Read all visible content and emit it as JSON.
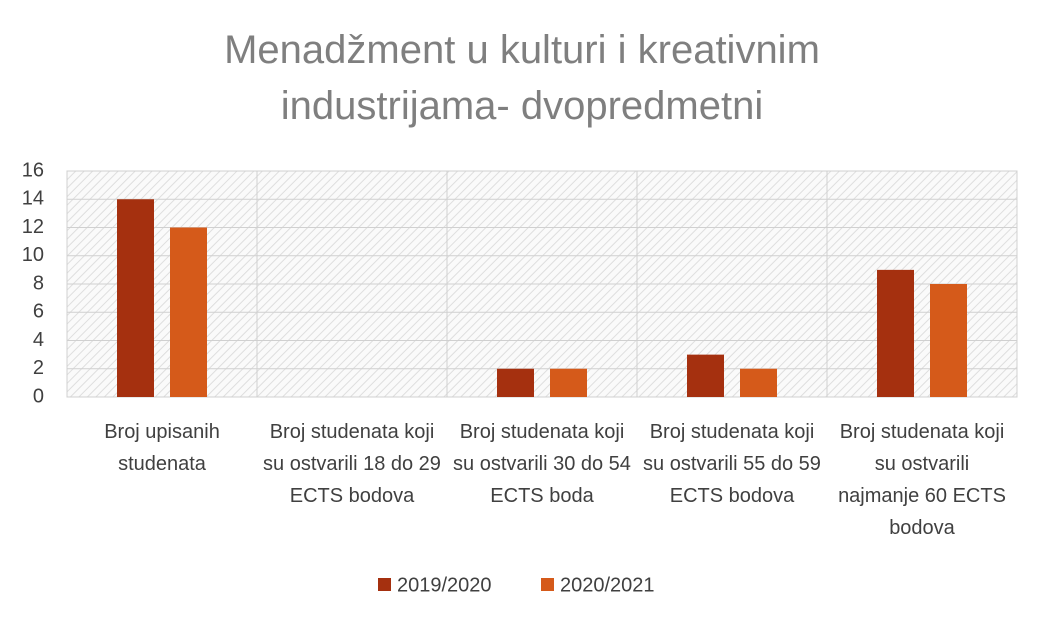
{
  "chart_data": {
    "type": "bar",
    "title": "Menadžment u kulturi i kreativnim industrijama- dvopredmetni",
    "categories": [
      "Broj upisanih studenata",
      "Broj studenata koji su ostvarili 18 do 29 ECTS bodova",
      "Broj studenata koji su ostvarili 30 do 54 ECTS boda",
      "Broj studenata koji su ostvarili 55 do 59 ECTS bodova",
      "Broj studenata koji su ostvarili najmanje 60 ECTS bodova"
    ],
    "series": [
      {
        "name": "2019/2020",
        "color": "#a5300f",
        "values": [
          14,
          0,
          2,
          3,
          9
        ]
      },
      {
        "name": "2020/2021",
        "color": "#d55a1a",
        "values": [
          12,
          0,
          2,
          2,
          8
        ]
      }
    ],
    "ylim": [
      0,
      16
    ],
    "yticks": [
      0,
      2,
      4,
      6,
      8,
      10,
      12,
      14,
      16
    ],
    "grid": true,
    "legend": "bottom"
  }
}
